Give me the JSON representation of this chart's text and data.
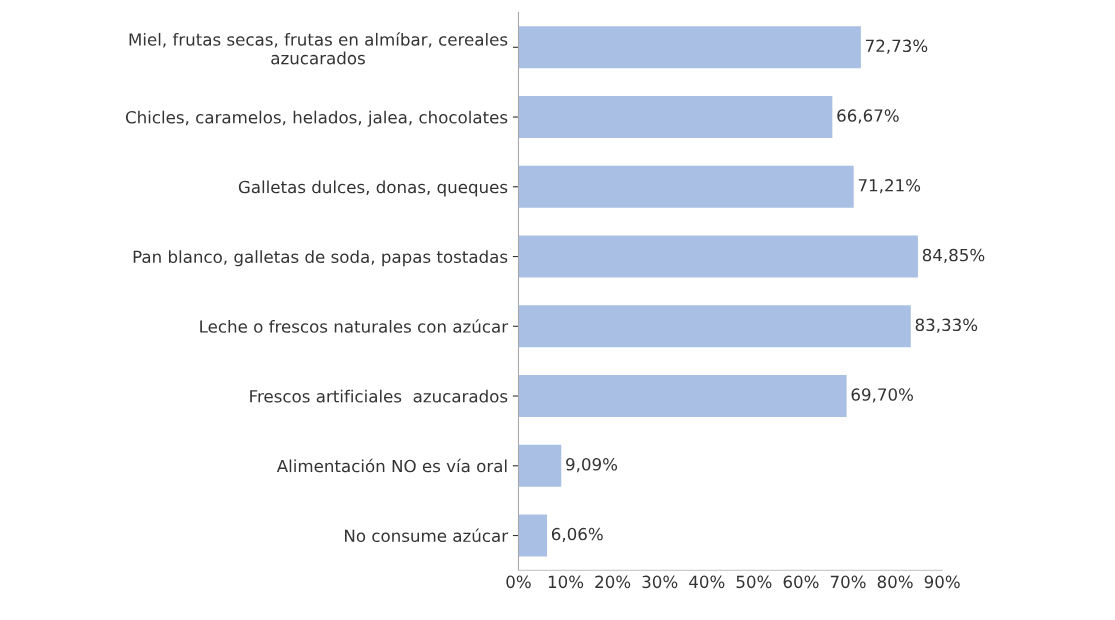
{
  "chart_data": {
    "type": "bar",
    "orientation": "horizontal",
    "categories": [
      "Miel, frutas secas, frutas en almíbar, cereales\nazucarados",
      "Chicles, caramelos, helados, jalea, chocolates",
      "Galletas dulces, donas, queques",
      "Pan blanco, galletas de soda, papas tostadas",
      "Leche o frescos naturales con azúcar",
      "Frescos artificiales  azucarados",
      "Alimentación NO es vía oral",
      "No consume azúcar"
    ],
    "values": [
      72.73,
      66.67,
      71.21,
      84.85,
      83.33,
      69.7,
      9.09,
      6.06
    ],
    "value_labels": [
      "72,73%",
      "66,67%",
      "71,21%",
      "84,85%",
      "83,33%",
      "69,70%",
      "9,09%",
      "6,06%"
    ],
    "color": "#a9bfe3",
    "xlim": [
      0,
      90
    ],
    "xticks": [
      {
        "value": 0,
        "label": "0%"
      },
      {
        "value": 10,
        "label": "10%"
      },
      {
        "value": 20,
        "label": "20%"
      },
      {
        "value": 30,
        "label": "30%"
      },
      {
        "value": 40,
        "label": "40%"
      },
      {
        "value": 50,
        "label": "50%"
      },
      {
        "value": 60,
        "label": "60%"
      },
      {
        "value": 70,
        "label": "70%"
      },
      {
        "value": 80,
        "label": "80%"
      },
      {
        "value": 90,
        "label": "90%"
      }
    ],
    "grid": false,
    "legend": false
  }
}
